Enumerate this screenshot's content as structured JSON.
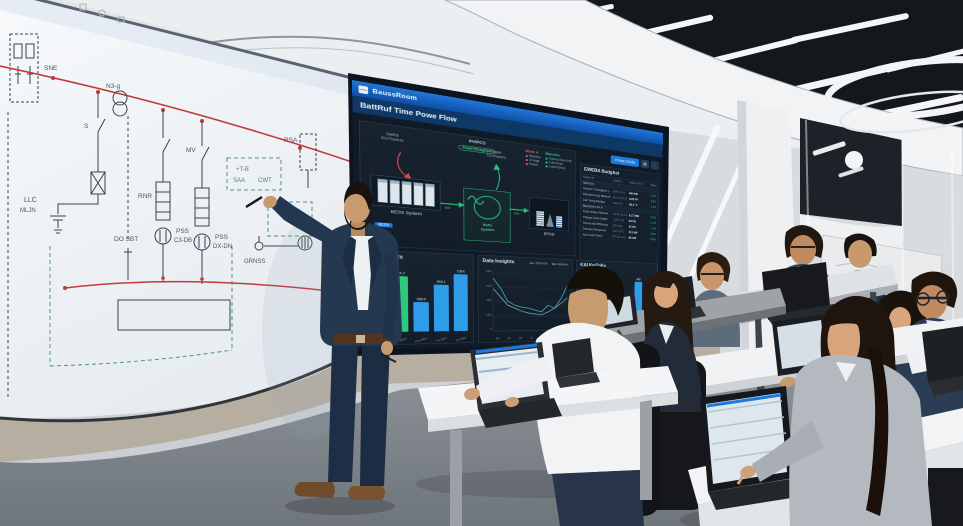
{
  "colors": {
    "accent_blue": "#1f7ae0",
    "dashboard_bg": "#111b26",
    "green": "#2bc07f",
    "red": "#d84b4b",
    "bus_red": "#c23b3b",
    "bar_blue": "#2f9ce8",
    "bar_green": "#2fc77e",
    "line_teal": "#3ad2c3",
    "line_light": "#8fbade"
  },
  "whiteboard": {
    "labels": {
      "sne": "SNE",
      "n3g": "N3-g",
      "s": "S",
      "mv": "MV",
      "rnr": "RNR",
      "llc": "LLC",
      "mljn": "MLJN",
      "do_sbt": "DO SBT",
      "pss1a": "PSS",
      "pss1b": "C3-DB",
      "pss2a": "PSS",
      "pss2b": "DX-DN",
      "ztb": "+T-B",
      "saa": "SAA",
      "cwt": "CWT",
      "rsa": "RSA",
      "grnss": "GRNSS"
    }
  },
  "dashboard": {
    "appbar": {
      "brand": "BaussRoom",
      "icon": "app-grid-icon"
    },
    "title": "BattRuf Time Powe Flow",
    "toolbar": {
      "primary_button": "Prime Grids",
      "icons": [
        "panels-icon",
        "more-icon"
      ]
    },
    "flow": {
      "pv_label": "PV/PCS",
      "pv_badge": "Power throughput",
      "left_feed_1": "SARS",
      "left_feed_2": "DC/Towers",
      "mid_feed_1": "SMW",
      "mid_feed_2": "DC/Towers",
      "bess_chip": "BESS",
      "bess_label": "BESS System",
      "bms_label_1": "BMS",
      "bms_label_2": "System",
      "eps_label": "EPSD",
      "arrow_left_value": "kW",
      "arrow_right_value": "kW",
      "legend": {
        "mode_title": "Mode A",
        "mode_items": [
          "Standby",
          "Charge",
          "Export"
        ],
        "baseline_title": "Baseline",
        "baseline_items": [
          "Towers Rack PW",
          "3-4G Flow",
          "Load history"
        ]
      }
    },
    "table": {
      "title": "EWEBA BudgAst",
      "columns": [
        "Meter ID",
        "Source",
        "Value (24 h)",
        "Target"
      ],
      "sections": [
        {
          "label": "Metrics",
          "rows": [
            [
              "Inverter Throughput (KW)",
              "BMS 12-A",
              "844 kW",
              "4.2%"
            ],
            [
              "Effective Duty Balance",
              "Bus-A 08:12",
              "0.93 PF",
              "3.8%"
            ],
            [
              "Cell Temp Median",
              "Rack 03",
              "38.2 °C",
              "1.1%"
            ]
          ]
        },
        {
          "label": "Baseline 24 h",
          "rows": [
            [
              "Peak Shave Window",
              "08:40–11:20",
              "6.17 MW",
              "5.5%"
            ],
            [
              "Charge Cycle Depth",
              "Cycle 118",
              "84.2%",
              "2.9%"
            ],
            [
              "Round-trip Efficiency",
              "Site avg",
              "91.8%",
              "1.4%"
            ],
            [
              "Demand Response",
              "Grid OP-2",
              "412 kW",
              "3.6%"
            ],
            [
              "Aux Load Share",
              "EPSD feed",
              "66 kW",
              "0.8%"
            ]
          ]
        }
      ]
    },
    "charts": [
      {
        "type": "bar",
        "title": "Mag Rizwets",
        "categories": [
          "F1-Fwd",
          "F2-A8m",
          "F3-mBw",
          "F4-8B4",
          "F5-B8d"
        ],
        "values": [
          34,
          86,
          46,
          74,
          92
        ],
        "value_labels": [
          "334",
          "934.7",
          "498.5",
          "994.1",
          "1084"
        ],
        "colors": [
          "#2f9ce8",
          "#2fc77e",
          "#2f9ce8",
          "#2f9ce8",
          "#2f9ce8"
        ],
        "ylim": [
          0,
          100
        ]
      },
      {
        "type": "line",
        "title": "Data Insights",
        "x": [
          "00",
          "04",
          "08",
          "12",
          "16",
          "20",
          "24"
        ],
        "ylim": [
          0,
          600
        ],
        "yticks": [
          "600",
          "450",
          "300",
          "150",
          "0"
        ],
        "series": [
          {
            "name": "2024 kW",
            "color": "#3ad2c3",
            "values": [
              520,
              430,
              300,
              260,
              240,
              230,
              210,
              190,
              260,
              230,
              330,
              470
            ]
          },
          {
            "name": "Baseline",
            "color": "#8fbade",
            "values": [
              420,
              340,
              260,
              230,
              200,
              180,
              170,
              160,
              190,
              230,
              280,
              340
            ]
          }
        ]
      },
      {
        "type": "bar",
        "title": "KAI KwZnKc",
        "categories": [
          "M1",
          "M2",
          "M3",
          "M4",
          "M5",
          "M6"
        ],
        "values": [
          42,
          30,
          52,
          58,
          88,
          66
        ],
        "value_labels": [
          "412",
          "",
          "428",
          "518",
          "988",
          "648"
        ],
        "colors": [
          "#2f9ce8",
          "#2f9ce8",
          "#2f9ce8",
          "#2f9ce8",
          "#2f9ce8",
          "#2f9ce8"
        ],
        "ylim": [
          0,
          100
        ],
        "yticks": [
          "100",
          "80",
          "60",
          "40",
          "20",
          "0"
        ]
      }
    ]
  }
}
